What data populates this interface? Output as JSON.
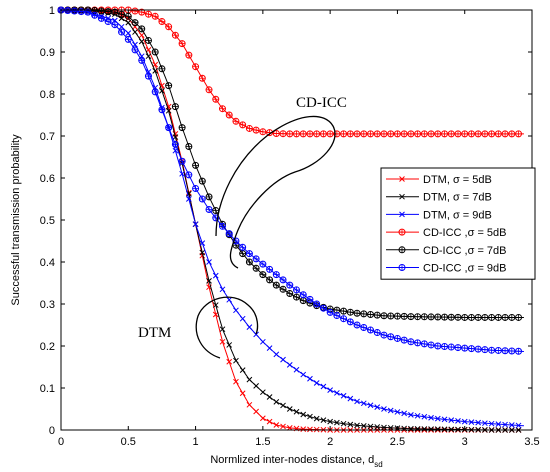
{
  "chart_data": {
    "type": "line",
    "xlabel": "Normlized inter-nodes distance, d",
    "xlabel_sub": "sd",
    "ylabel": "Successful transmission probability",
    "xlim": [
      0,
      3.5
    ],
    "ylim": [
      0,
      1
    ],
    "xticks": [
      "0",
      "0.5",
      "1",
      "1.5",
      "2",
      "2.5",
      "3",
      "3.5"
    ],
    "yticks": [
      "0",
      "0.1",
      "0.2",
      "0.3",
      "0.4",
      "0.5",
      "0.6",
      "0.7",
      "0.8",
      "0.9",
      "1"
    ],
    "grid": false,
    "legend_position": "right",
    "annotations": [
      "CD-ICC",
      "DTM"
    ],
    "series": [
      {
        "name": "DTM,  σ = 5dB",
        "color": "#ff0000",
        "marker": "x",
        "x": [
          0,
          0.2,
          0.4,
          0.5,
          0.6,
          0.7,
          0.8,
          0.9,
          1.0,
          1.1,
          1.2,
          1.3,
          1.4,
          1.5,
          1.6,
          1.7,
          1.8,
          1.9,
          2.0,
          2.1,
          2.2,
          2.4,
          2.6,
          3.0,
          3.44
        ],
        "y": [
          1,
          1,
          0.995,
          0.98,
          0.94,
          0.87,
          0.77,
          0.64,
          0.49,
          0.34,
          0.21,
          0.115,
          0.06,
          0.028,
          0.012,
          0.005,
          0.002,
          0.001,
          0,
          0,
          0,
          0,
          0,
          0,
          0
        ]
      },
      {
        "name": "DTM,  σ = 7dB",
        "color": "#000000",
        "marker": "x",
        "x": [
          0,
          0.2,
          0.4,
          0.5,
          0.6,
          0.7,
          0.8,
          0.9,
          1.0,
          1.1,
          1.2,
          1.3,
          1.4,
          1.5,
          1.6,
          1.7,
          1.8,
          1.9,
          2.0,
          2.1,
          2.2,
          2.4,
          2.6,
          2.8,
          3.0,
          3.2,
          3.44
        ],
        "y": [
          1,
          1,
          0.99,
          0.97,
          0.925,
          0.855,
          0.76,
          0.635,
          0.49,
          0.355,
          0.24,
          0.165,
          0.12,
          0.09,
          0.067,
          0.05,
          0.037,
          0.027,
          0.02,
          0.015,
          0.011,
          0.006,
          0.003,
          0.002,
          0.001,
          0.0,
          0.0
        ]
      },
      {
        "name": "DTM,  σ = 9dB",
        "color": "#0000ff",
        "marker": "x",
        "x": [
          0,
          0.2,
          0.4,
          0.5,
          0.6,
          0.7,
          0.8,
          0.9,
          1.0,
          1.1,
          1.2,
          1.3,
          1.4,
          1.5,
          1.6,
          1.7,
          1.8,
          1.9,
          2.0,
          2.2,
          2.4,
          2.6,
          2.8,
          3.0,
          3.2,
          3.44
        ],
        "y": [
          1,
          0.995,
          0.975,
          0.945,
          0.89,
          0.815,
          0.72,
          0.61,
          0.49,
          0.4,
          0.335,
          0.285,
          0.245,
          0.21,
          0.18,
          0.155,
          0.132,
          0.112,
          0.095,
          0.068,
          0.05,
          0.036,
          0.027,
          0.02,
          0.015,
          0.01
        ]
      },
      {
        "name": "CD-ICC ,σ = 5dB",
        "color": "#ff0000",
        "marker": "o",
        "x": [
          0,
          0.2,
          0.4,
          0.5,
          0.6,
          0.7,
          0.8,
          0.9,
          1.0,
          1.1,
          1.2,
          1.3,
          1.4,
          1.5,
          1.6,
          1.7,
          1.8,
          2.0,
          2.2,
          2.4,
          2.6,
          2.8,
          3.0,
          3.2,
          3.44
        ],
        "y": [
          1,
          1,
          1,
          1,
          0.995,
          0.985,
          0.96,
          0.92,
          0.865,
          0.81,
          0.765,
          0.735,
          0.718,
          0.71,
          0.706,
          0.705,
          0.705,
          0.705,
          0.705,
          0.705,
          0.705,
          0.705,
          0.705,
          0.705,
          0.705
        ]
      },
      {
        "name": "CD-ICC ,σ = 7dB",
        "color": "#000000",
        "marker": "o",
        "x": [
          0,
          0.2,
          0.4,
          0.5,
          0.6,
          0.7,
          0.8,
          0.9,
          1.0,
          1.1,
          1.2,
          1.3,
          1.4,
          1.5,
          1.6,
          1.7,
          1.8,
          1.9,
          2.0,
          2.2,
          2.4,
          2.6,
          2.8,
          3.0,
          3.2,
          3.44
        ],
        "y": [
          1,
          1,
          0.995,
          0.985,
          0.955,
          0.9,
          0.82,
          0.72,
          0.63,
          0.555,
          0.49,
          0.44,
          0.4,
          0.37,
          0.345,
          0.325,
          0.308,
          0.296,
          0.288,
          0.278,
          0.272,
          0.27,
          0.269,
          0.268,
          0.268,
          0.268
        ]
      },
      {
        "name": "CD-ICC ,σ = 9dB",
        "color": "#0000ff",
        "marker": "o",
        "x": [
          0,
          0.2,
          0.4,
          0.5,
          0.6,
          0.7,
          0.8,
          0.9,
          1.0,
          1.1,
          1.2,
          1.3,
          1.4,
          1.5,
          1.6,
          1.7,
          1.8,
          1.9,
          2.0,
          2.2,
          2.4,
          2.6,
          2.8,
          3.0,
          3.2,
          3.44
        ],
        "y": [
          1,
          0.995,
          0.965,
          0.93,
          0.88,
          0.805,
          0.72,
          0.64,
          0.575,
          0.525,
          0.485,
          0.45,
          0.42,
          0.395,
          0.37,
          0.345,
          0.322,
          0.3,
          0.28,
          0.25,
          0.226,
          0.21,
          0.2,
          0.195,
          0.19,
          0.187
        ]
      }
    ]
  }
}
